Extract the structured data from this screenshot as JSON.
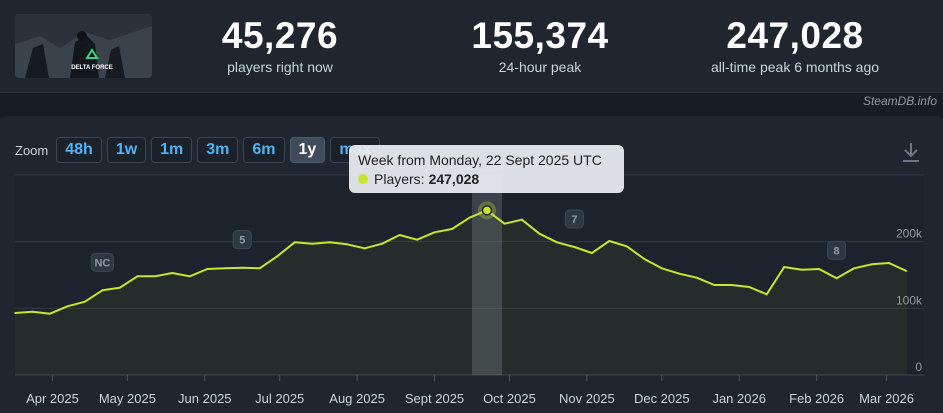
{
  "stats": [
    {
      "value": "45,276",
      "label": "players right now"
    },
    {
      "value": "155,374",
      "label": "24-hour peak"
    },
    {
      "value": "247,028",
      "label": "all-time peak 6 months ago"
    }
  ],
  "game_thumb_text": "DELTA FORCE",
  "credit": "SteamDB.info",
  "zoom": {
    "label": "Zoom",
    "buttons": [
      "48h",
      "1w",
      "1m",
      "3m",
      "6m",
      "1y",
      "max"
    ],
    "active": "1y"
  },
  "tooltip": {
    "title": "Week from Monday, 22 Sept 2025 UTC",
    "series_label": "Players:",
    "value": "247,028"
  },
  "colors": {
    "line": "#c8e62e",
    "accent": "#4fb3f7",
    "background": "#171d25"
  },
  "chart_data": {
    "type": "line",
    "ylabel": "",
    "xlabel": "",
    "ylim": [
      0,
      300000
    ],
    "y_ticks": [
      0,
      100000,
      200000
    ],
    "y_tick_labels": [
      "0",
      "100k",
      "200k"
    ],
    "x_ticks": [
      {
        "date": "2025-04-01",
        "label": "Apr 2025"
      },
      {
        "date": "2025-05-01",
        "label": "May 2025"
      },
      {
        "date": "2025-06-01",
        "label": "Jun 2025"
      },
      {
        "date": "2025-07-01",
        "label": "Jul 2025"
      },
      {
        "date": "2025-08-01",
        "label": "Aug 2025"
      },
      {
        "date": "2025-09-01",
        "label": "Sept 2025"
      },
      {
        "date": "2025-10-01",
        "label": "Oct 2025"
      },
      {
        "date": "2025-11-01",
        "label": "Nov 2025"
      },
      {
        "date": "2025-12-01",
        "label": "Dec 2025"
      },
      {
        "date": "2026-01-01",
        "label": "Jan 2026"
      },
      {
        "date": "2026-02-01",
        "label": "Feb 2026"
      },
      {
        "date": "2026-03-01",
        "label": "Mar 2026"
      }
    ],
    "x_range": [
      "2025-03-17",
      "2026-03-16"
    ],
    "grid": true,
    "highlight": {
      "date": "2025-09-22",
      "value": 247028
    },
    "annotations": [
      {
        "label": "NC",
        "date": "2025-04-21"
      },
      {
        "label": "5",
        "date": "2025-06-16"
      },
      {
        "label": "7",
        "date": "2025-10-27"
      },
      {
        "label": "8",
        "date": "2026-02-09"
      }
    ],
    "series": [
      {
        "points": [
          [
            "2025-03-17",
            93000
          ],
          [
            "2025-03-24",
            95000
          ],
          [
            "2025-03-31",
            92000
          ],
          [
            "2025-04-07",
            103000
          ],
          [
            "2025-04-14",
            110000
          ],
          [
            "2025-04-21",
            127000
          ],
          [
            "2025-04-28",
            131000
          ],
          [
            "2025-05-05",
            148000
          ],
          [
            "2025-05-12",
            148000
          ],
          [
            "2025-05-19",
            153000
          ],
          [
            "2025-05-26",
            148000
          ],
          [
            "2025-06-02",
            159000
          ],
          [
            "2025-06-09",
            160000
          ],
          [
            "2025-06-16",
            161000
          ],
          [
            "2025-06-23",
            160000
          ],
          [
            "2025-06-30",
            178000
          ],
          [
            "2025-07-07",
            199000
          ],
          [
            "2025-07-14",
            197000
          ],
          [
            "2025-07-21",
            199000
          ],
          [
            "2025-07-28",
            196000
          ],
          [
            "2025-08-04",
            190000
          ],
          [
            "2025-08-11",
            197000
          ],
          [
            "2025-08-18",
            210000
          ],
          [
            "2025-08-25",
            203000
          ],
          [
            "2025-09-01",
            214000
          ],
          [
            "2025-09-08",
            219000
          ],
          [
            "2025-09-15",
            236000
          ],
          [
            "2025-09-22",
            247028
          ],
          [
            "2025-09-29",
            227000
          ],
          [
            "2025-10-06",
            233000
          ],
          [
            "2025-10-13",
            212000
          ],
          [
            "2025-10-20",
            199000
          ],
          [
            "2025-10-27",
            192000
          ],
          [
            "2025-11-03",
            183000
          ],
          [
            "2025-11-10",
            201000
          ],
          [
            "2025-11-17",
            193000
          ],
          [
            "2025-11-24",
            174000
          ],
          [
            "2025-12-01",
            160000
          ],
          [
            "2025-12-08",
            152000
          ],
          [
            "2025-12-15",
            146000
          ],
          [
            "2025-12-22",
            135000
          ],
          [
            "2025-12-29",
            135000
          ],
          [
            "2026-01-05",
            132000
          ],
          [
            "2026-01-12",
            121000
          ],
          [
            "2026-01-19",
            162000
          ],
          [
            "2026-01-26",
            158000
          ],
          [
            "2026-02-02",
            159000
          ],
          [
            "2026-02-09",
            145000
          ],
          [
            "2026-02-16",
            160000
          ],
          [
            "2026-02-23",
            166000
          ],
          [
            "2026-03-02",
            168000
          ],
          [
            "2026-03-09",
            156000
          ]
        ]
      }
    ]
  }
}
